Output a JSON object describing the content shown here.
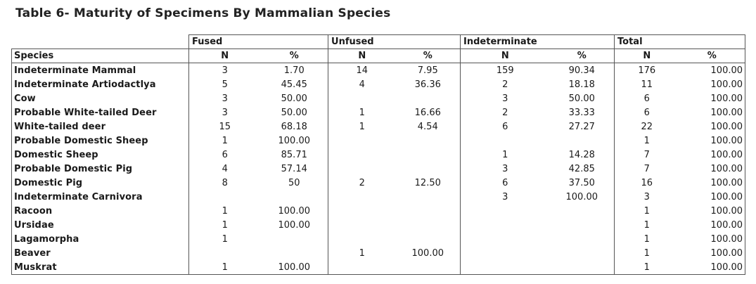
{
  "title": "Table 6- Maturity of Specimens By Mammalian Species",
  "groups": [
    "Fused",
    "Unfused",
    "Indeterminate",
    "Total"
  ],
  "species_header": "Species",
  "sub_headers": [
    "N",
    "%",
    "N",
    "%",
    "N",
    "%",
    "N",
    "%"
  ],
  "rows": [
    {
      "species": "Indeterminate Mammal",
      "values": [
        "3",
        "1.70",
        "14",
        "7.95",
        "159",
        "90.34",
        "176",
        "100.00"
      ]
    },
    {
      "species": "Indeterminate Artiodactlya",
      "values": [
        "5",
        "45.45",
        "4",
        "36.36",
        "2",
        "18.18",
        "11",
        "100.00"
      ]
    },
    {
      "species": "Cow",
      "values": [
        "3",
        "50.00",
        "",
        "",
        "3",
        "50.00",
        "6",
        "100.00"
      ]
    },
    {
      "species": "Probable White-tailed Deer",
      "values": [
        "3",
        "50.00",
        "1",
        "16.66",
        "2",
        "33.33",
        "6",
        "100.00"
      ]
    },
    {
      "species": "White-tailed deer",
      "values": [
        "15",
        "68.18",
        "1",
        "4.54",
        "6",
        "27.27",
        "22",
        "100.00"
      ]
    },
    {
      "species": "Probable Domestic Sheep",
      "values": [
        "1",
        "100.00",
        "",
        "",
        "",
        "",
        "1",
        "100.00"
      ]
    },
    {
      "species": "Domestic Sheep",
      "values": [
        "6",
        "85.71",
        "",
        "",
        "1",
        "14.28",
        "7",
        "100.00"
      ]
    },
    {
      "species": "Probable Domestic Pig",
      "values": [
        "4",
        "57.14",
        "",
        "",
        "3",
        "42.85",
        "7",
        "100.00"
      ]
    },
    {
      "species": "Domestic Pig",
      "values": [
        "8",
        "50",
        "2",
        "12.50",
        "6",
        "37.50",
        "16",
        "100.00"
      ]
    },
    {
      "species": "Indeterminate Carnivora",
      "values": [
        "",
        "",
        "",
        "",
        "3",
        "100.00",
        "3",
        "100.00"
      ]
    },
    {
      "species": "Racoon",
      "values": [
        "1",
        "100.00",
        "",
        "",
        "",
        "",
        "1",
        "100.00"
      ]
    },
    {
      "species": "Ursidae",
      "values": [
        "1",
        "100.00",
        "",
        "",
        "",
        "",
        "1",
        "100.00"
      ]
    },
    {
      "species": "Lagamorpha",
      "values": [
        "1",
        "",
        "",
        "",
        "",
        "",
        "1",
        "100.00"
      ]
    },
    {
      "species": "Beaver",
      "values": [
        "",
        "",
        "1",
        "100.00",
        "",
        "",
        "1",
        "100.00"
      ]
    },
    {
      "species": "Muskrat",
      "values": [
        "1",
        "100.00",
        "",
        "",
        "",
        "",
        "1",
        "100.00"
      ]
    }
  ]
}
